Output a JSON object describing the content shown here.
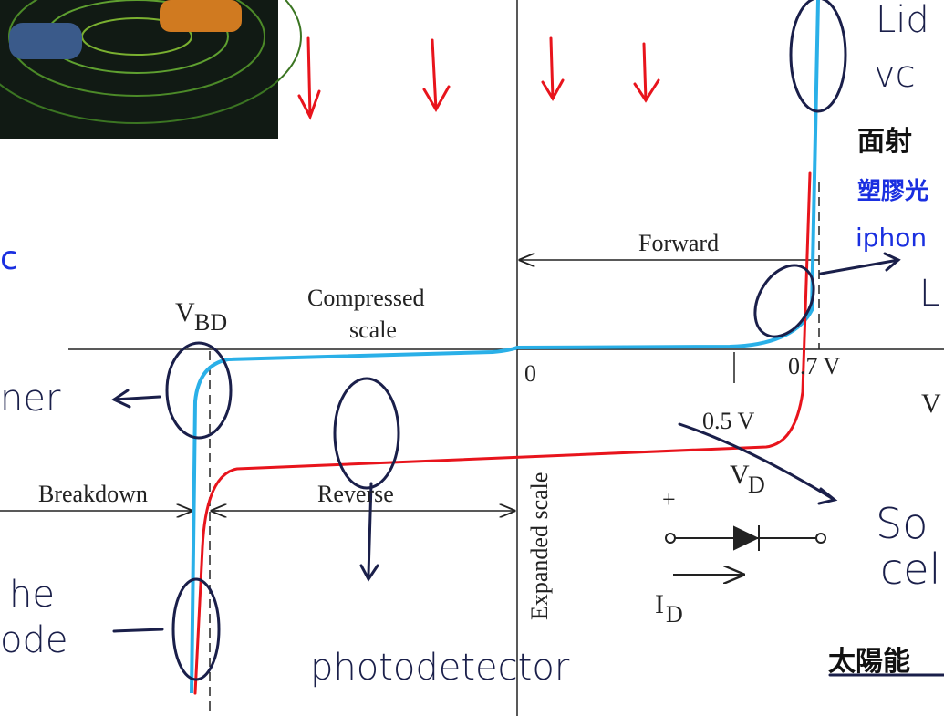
{
  "slide_text": {
    "heading_1": "面射",
    "blue_1": "塑膠光",
    "blue_2": "iphon",
    "left_blue": "c",
    "heading_2": "太陽能"
  },
  "diagram": {
    "forward": "Forward",
    "compressed_1": "Compressed",
    "compressed_2": "scale",
    "vbd_main": "V",
    "vbd_sub": "BD",
    "origin": "0",
    "tick_07": "0.7 V",
    "tick_05": "0.5 V",
    "v_axis": "V",
    "vd_main": "V",
    "vd_sub": "D",
    "id_main": "I",
    "id_sub": "D",
    "breakdown": "Breakdown",
    "reverse": "Reverse",
    "expanded": "Expanded scale",
    "plus": "+"
  },
  "handwriting": {
    "top_1": "Lid",
    "top_2": "vc",
    "led": "L",
    "zener": "ner",
    "avalanche_1": "he",
    "avalanche_2": "ode",
    "photodetector": "photodetector",
    "solar_1": "So",
    "solar_2": "cel"
  }
}
